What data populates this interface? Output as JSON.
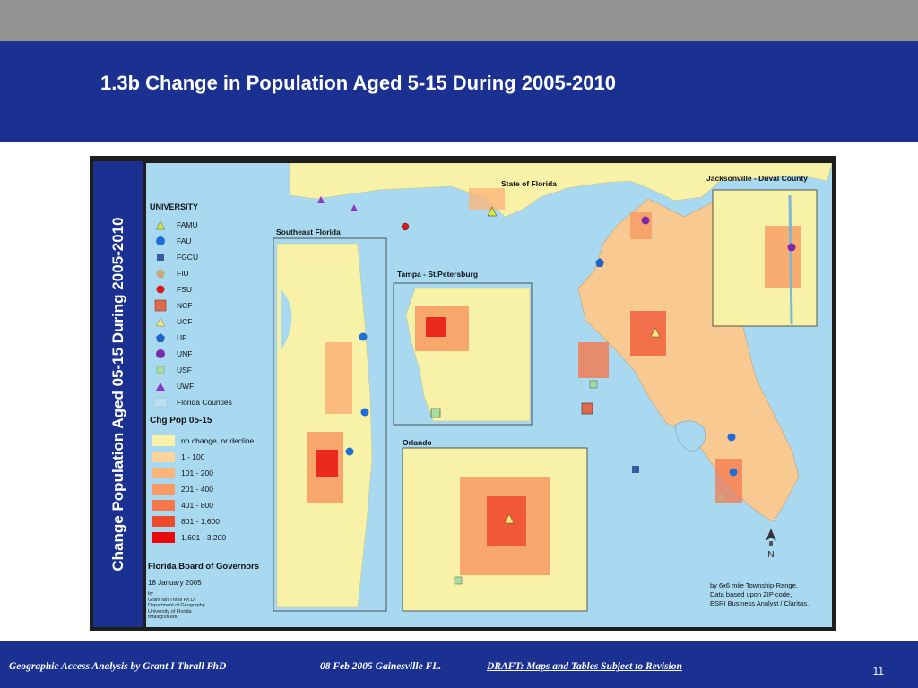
{
  "slide": {
    "title": "1.3b Change in Population Aged 5-15 During 2005-2010",
    "page_number": "11"
  },
  "footer": {
    "author": "Geographic Access Analysis by Grant I Thrall PhD",
    "date_place": "08 Feb 2005  Gainesville FL.",
    "draft": "DRAFT:  Maps and Tables Subject to Revision"
  },
  "map": {
    "vertical_title": "Change Population Aged 05-15 During 2005-2010",
    "labels": {
      "state": "State of Florida",
      "jacksonville": "Jacksonville - Duval County",
      "southeast": "Southeast Florida",
      "tampa": "Tampa - St.Petersburg",
      "orlando": "Orlando"
    },
    "legend": {
      "university_title": "UNIVERSITY",
      "universities": [
        {
          "label": "FAMU",
          "icon": "triangle-icon",
          "color": "#d8e83a"
        },
        {
          "label": "FAU",
          "icon": "circle-icon",
          "color": "#1f6fd6"
        },
        {
          "label": "FGCU",
          "icon": "square-icon",
          "color": "#3a5a9e"
        },
        {
          "label": "FIU",
          "icon": "pentagon-icon",
          "color": "#c9a87a"
        },
        {
          "label": "FSU",
          "icon": "circle-icon",
          "color": "#d91a1a"
        },
        {
          "label": "NCF",
          "icon": "square-icon",
          "color": "#e06a4a"
        },
        {
          "label": "UCF",
          "icon": "triangle-icon",
          "color": "#f4e67a"
        },
        {
          "label": "UF",
          "icon": "pentagon-icon",
          "color": "#1f63c9"
        },
        {
          "label": "UNF",
          "icon": "circle-icon",
          "color": "#7a2aa8"
        },
        {
          "label": "USF",
          "icon": "square-icon",
          "color": "#a8dca0"
        },
        {
          "label": "UWF",
          "icon": "triangle-icon",
          "color": "#8a36c8"
        },
        {
          "label": "Florida Counties",
          "icon": "box-icon",
          "color": "#bcdff0"
        }
      ],
      "change_title": "Chg Pop 05-15",
      "classes": [
        {
          "label": "no change, or decline",
          "color": "#f7f2a8"
        },
        {
          "label": "1 - 100",
          "color": "#fcd39a"
        },
        {
          "label": "101 - 200",
          "color": "#fbb57a"
        },
        {
          "label": "201 - 400",
          "color": "#f89a62"
        },
        {
          "label": "401 - 800",
          "color": "#f5784c"
        },
        {
          "label": "801 - 1,600",
          "color": "#f04a2c"
        },
        {
          "label": "1,601 - 3,200",
          "color": "#e80a0a"
        }
      ]
    },
    "board": "Florida Board of Governors",
    "date": "18 January 2005",
    "credit": [
      "by",
      "Grant Ian Thrall Ph.D.",
      "Department of Geography",
      "University of Florida",
      "thrall@ufl.edu"
    ],
    "source_note": [
      "by 6x6 mile Township-Range.",
      "Data based upon ZIP code,",
      "ESRI Business Analyst / Claritas."
    ],
    "north": "N"
  }
}
